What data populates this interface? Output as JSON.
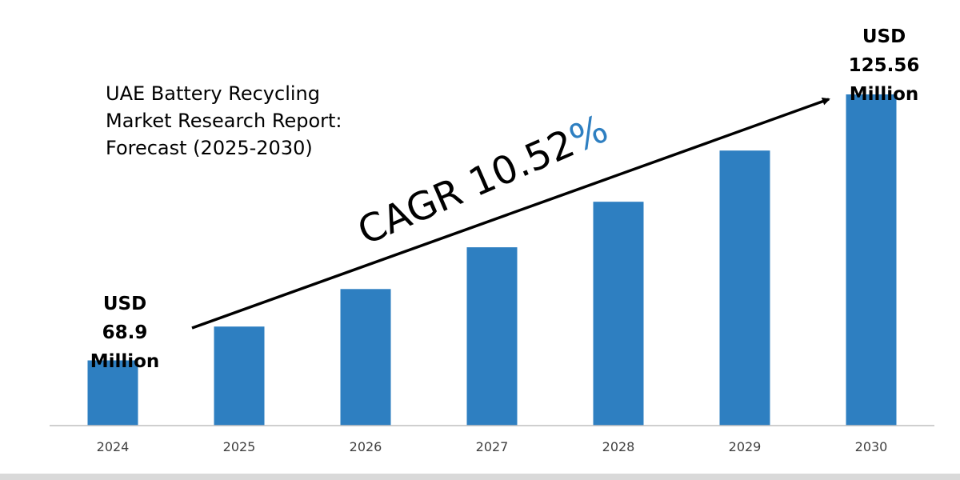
{
  "chart_data": {
    "type": "bar",
    "title": "UAE Battery Recycling Market Research Report: Forecast (2025-2030)",
    "title_lines": [
      "UAE Battery Recycling",
      "Market Research Report:",
      "Forecast (2025-2030)"
    ],
    "categories": [
      "2024",
      "2025",
      "2026",
      "2027",
      "2028",
      "2029",
      "2030"
    ],
    "values": [
      68.9,
      76.1,
      84.1,
      93.0,
      102.7,
      113.6,
      125.56
    ],
    "unit": "USD Million",
    "ylim": [
      55,
      130
    ],
    "bar_color": "#2e7fc1",
    "axis_color": "#bfbfbf",
    "grid": false,
    "annotations": {
      "start_label": [
        "USD",
        "68.9",
        "Million"
      ],
      "end_label": [
        "USD",
        "125.56",
        "Million"
      ],
      "cagr_text": "CAGR 10.52",
      "cagr_percent": "%",
      "cagr_percent_color": "#2e7fc1"
    }
  }
}
